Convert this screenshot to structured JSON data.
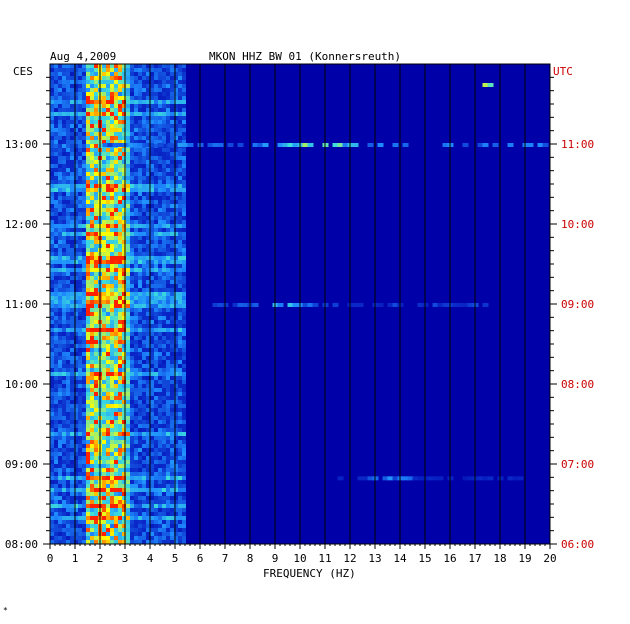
{
  "chart_data": {
    "type": "heatmap",
    "title": "MKON HHZ BW 01 (Konnersreuth)",
    "date": "Aug 4,2009",
    "xlabel": "FREQUENCY (HZ)",
    "x_ticks": [
      "0",
      "1",
      "2",
      "3",
      "4",
      "5",
      "6",
      "7",
      "8",
      "9",
      "10",
      "11",
      "12",
      "13",
      "14",
      "15",
      "16",
      "17",
      "18",
      "19",
      "20"
    ],
    "xlim": [
      0,
      20
    ],
    "left_axis_label": "CES",
    "right_axis_label": "UTC",
    "left_time_ticks": [
      "08:00",
      "09:00",
      "10:00",
      "11:00",
      "12:00",
      "13:00"
    ],
    "right_time_ticks": [
      "06:00",
      "07:00",
      "08:00",
      "09:00",
      "10:00",
      "11:00"
    ],
    "time_range_local": [
      "08:00",
      "13:45"
    ],
    "colors": {
      "background": "#0000a8",
      "low": "#0a1fb0",
      "mid": "#1e8cff",
      "high": "#ffff00",
      "peak": "#ff2000",
      "right_axis_text": "#cc0000",
      "grid": "#000000"
    },
    "bands": [
      {
        "name": "dominant-noise",
        "freq_range_hz": [
          1.5,
          3.0
        ],
        "intensity": "high"
      },
      {
        "name": "secondary-noise",
        "freq_range_hz": [
          0,
          5.5
        ],
        "intensity": "medium"
      },
      {
        "name": "line-3.1hz",
        "freq_hz": 3.1,
        "intensity": "medium"
      }
    ],
    "events": [
      {
        "time_local": "13:00",
        "freq_range_hz": [
          1.5,
          20
        ],
        "peak_hz": 10.5,
        "intensity": "high"
      },
      {
        "time_local": "11:00",
        "freq_range_hz": [
          6.5,
          17.5
        ],
        "peak_hz": 9.0,
        "intensity": "medium"
      },
      {
        "time_local": "08:50",
        "freq_range_hz": [
          11.5,
          19
        ],
        "peak_hz": 13.5,
        "intensity": "low"
      },
      {
        "time_local": "13:45",
        "freq_range_hz": [
          17.3,
          18.0
        ],
        "peak_hz": 17.6,
        "intensity": "high"
      }
    ],
    "grid": true
  },
  "footnote": "*"
}
